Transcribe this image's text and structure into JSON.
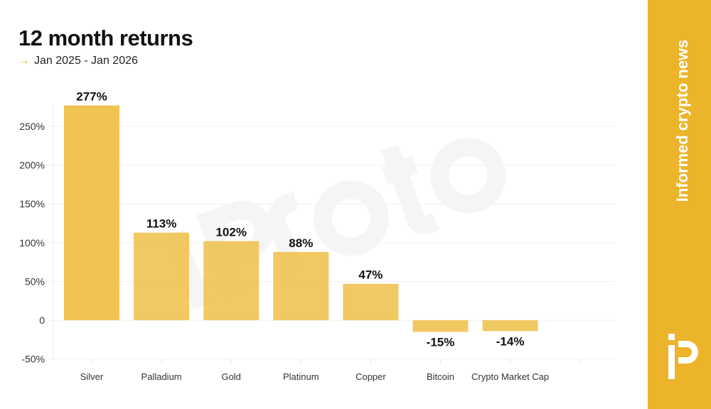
{
  "header": {
    "title": "12 month returns",
    "subtitle_arrow": "→",
    "subtitle": "Jan 2025 - Jan 2026"
  },
  "brand": {
    "tagline": "Informed crypto news",
    "logo_text": "iP",
    "watermark": "Protos",
    "panel_color": "#ebb42a"
  },
  "chart_data": {
    "type": "bar",
    "categories": [
      "Silver",
      "Palladium",
      "Gold",
      "Platinum",
      "Copper",
      "Bitcoin",
      "Crypto Market Cap"
    ],
    "values": [
      277,
      113,
      102,
      88,
      47,
      -15,
      -14
    ],
    "data_labels": [
      "277%",
      "113%",
      "102%",
      "88%",
      "47%",
      "-15%",
      "-14%"
    ],
    "yticks": [
      -50,
      0,
      50,
      100,
      150,
      200,
      250
    ],
    "ytick_labels": [
      "-50%",
      "0",
      "50%",
      "100%",
      "150%",
      "200%",
      "250%"
    ],
    "ylim": [
      -50,
      280
    ],
    "grid": true,
    "bar_color": "#f0c352"
  }
}
